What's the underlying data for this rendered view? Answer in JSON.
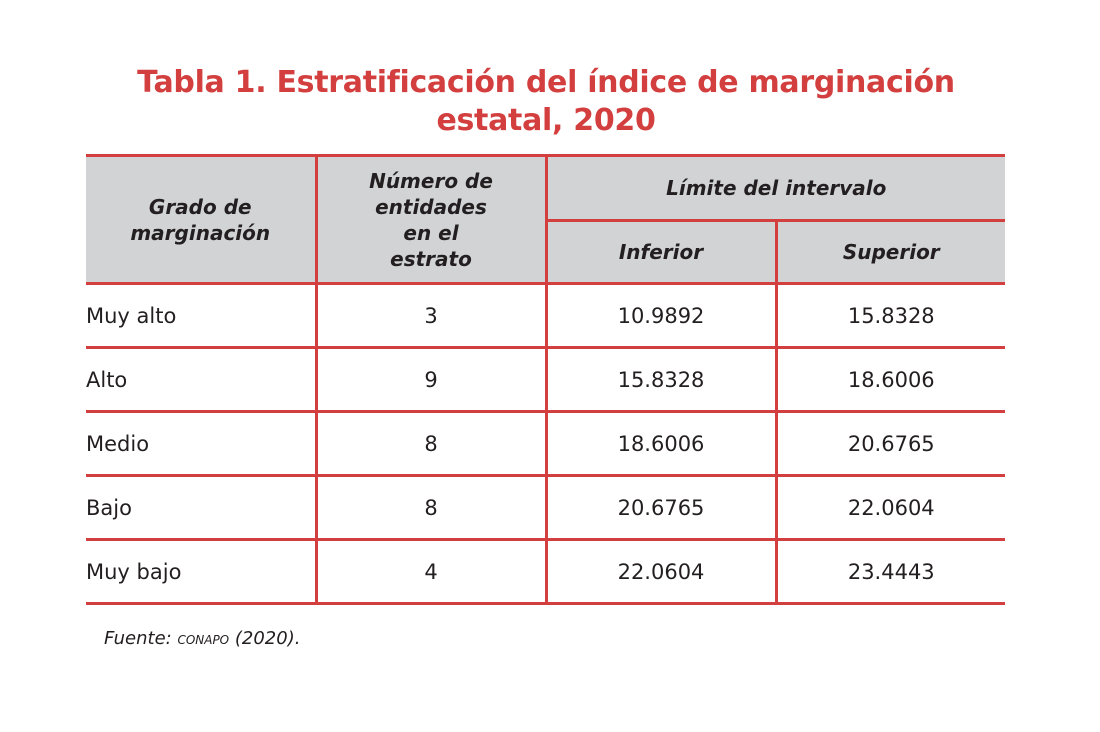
{
  "title": {
    "line1": "Tabla 1. Estratificación del índice de marginación",
    "line2": "estatal, 2020"
  },
  "table": {
    "header": {
      "grado": "Grado de marginación",
      "numero": "Número de entidades en el estrato",
      "limite": "Límite del intervalo",
      "inferior": "Inferior",
      "superior": "Superior"
    },
    "rows": [
      {
        "grado": "Muy alto",
        "numero": "3",
        "inferior": "10.9892",
        "superior": "15.8328"
      },
      {
        "grado": "Alto",
        "numero": "9",
        "inferior": "15.8328",
        "superior": "18.6006"
      },
      {
        "grado": "Medio",
        "numero": "8",
        "inferior": "18.6006",
        "superior": "20.6765"
      },
      {
        "grado": "Bajo",
        "numero": "8",
        "inferior": "20.6765",
        "superior": "22.0604"
      },
      {
        "grado": "Muy bajo",
        "numero": "4",
        "inferior": "22.0604",
        "superior": "23.4443"
      }
    ]
  },
  "source": {
    "prefix": "Fuente: ",
    "org": "conapo",
    "suffix": " (2020)."
  },
  "colors": {
    "accent": "#d33f3f",
    "header_bg": "#d1d3d4"
  }
}
